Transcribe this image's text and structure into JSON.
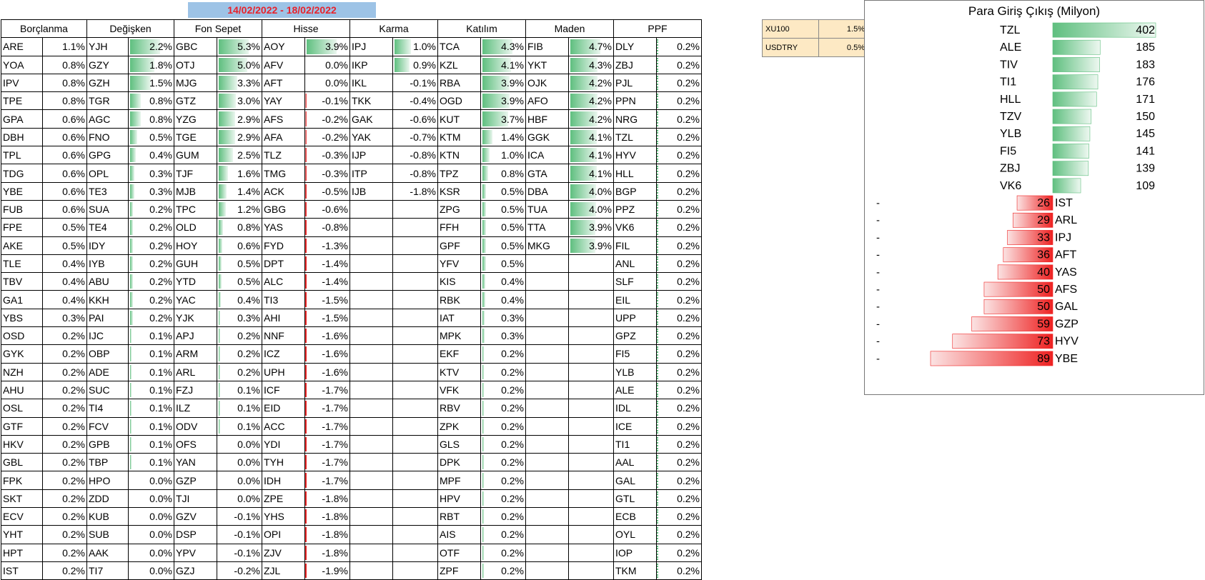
{
  "date_range": "14/02/2022 - 18/02/2022",
  "columns": [
    "Borçlanma",
    "Değişken",
    "Fon Sepet",
    "Hisse",
    "Karma",
    "Katılım",
    "Maden",
    "PPF"
  ],
  "rows": [
    [
      "ARE",
      "1.1%",
      "YJH",
      "2.2%",
      "GBC",
      "5.3%",
      "AOY",
      "3.9%",
      "IPJ",
      "1.0%",
      "TCA",
      "4.3%",
      "FIB",
      "4.7%",
      "DLY",
      "0.2%"
    ],
    [
      "YOA",
      "0.8%",
      "GZY",
      "1.8%",
      "OTJ",
      "5.0%",
      "AFV",
      "0.0%",
      "IKP",
      "0.9%",
      "KZL",
      "4.1%",
      "YKT",
      "4.3%",
      "ZBJ",
      "0.2%"
    ],
    [
      "IPV",
      "0.8%",
      "GZH",
      "1.5%",
      "MJG",
      "3.3%",
      "AFT",
      "0.0%",
      "IKL",
      "-0.1%",
      "RBA",
      "3.9%",
      "OJK",
      "4.2%",
      "PJL",
      "0.2%"
    ],
    [
      "TPE",
      "0.8%",
      "TGR",
      "0.8%",
      "GTZ",
      "3.0%",
      "YAY",
      "-0.1%",
      "TKK",
      "-0.4%",
      "OGD",
      "3.9%",
      "AFO",
      "4.2%",
      "PPN",
      "0.2%"
    ],
    [
      "GPA",
      "0.6%",
      "AGC",
      "0.8%",
      "YZG",
      "2.9%",
      "AFS",
      "-0.2%",
      "GAK",
      "-0.6%",
      "KUT",
      "3.7%",
      "HBF",
      "4.2%",
      "NRG",
      "0.2%"
    ],
    [
      "DBH",
      "0.6%",
      "FNO",
      "0.5%",
      "TGE",
      "2.9%",
      "AFA",
      "-0.2%",
      "YAK",
      "-0.7%",
      "KTM",
      "1.4%",
      "GGK",
      "4.1%",
      "TZL",
      "0.2%"
    ],
    [
      "TPL",
      "0.6%",
      "GPG",
      "0.4%",
      "GUM",
      "2.5%",
      "TLZ",
      "-0.3%",
      "IJP",
      "-0.8%",
      "KTN",
      "1.0%",
      "ICA",
      "4.1%",
      "HYV",
      "0.2%"
    ],
    [
      "TDG",
      "0.6%",
      "OPL",
      "0.3%",
      "TJF",
      "1.6%",
      "TMG",
      "-0.3%",
      "ITP",
      "-0.8%",
      "TPZ",
      "0.8%",
      "GTA",
      "4.1%",
      "HLL",
      "0.2%"
    ],
    [
      "YBE",
      "0.6%",
      "TE3",
      "0.3%",
      "MJB",
      "1.4%",
      "ACK",
      "-0.5%",
      "IJB",
      "-1.8%",
      "KSR",
      "0.5%",
      "DBA",
      "4.0%",
      "BGP",
      "0.2%"
    ],
    [
      "FUB",
      "0.6%",
      "SUA",
      "0.2%",
      "TPC",
      "1.2%",
      "GBG",
      "-0.6%",
      "",
      "",
      "ZPG",
      "0.5%",
      "TUA",
      "4.0%",
      "PPZ",
      "0.2%"
    ],
    [
      "FPE",
      "0.5%",
      "TE4",
      "0.2%",
      "OLD",
      "0.8%",
      "YAS",
      "-0.8%",
      "",
      "",
      "FFH",
      "0.5%",
      "TTA",
      "3.9%",
      "VK6",
      "0.2%"
    ],
    [
      "AKE",
      "0.5%",
      "IDY",
      "0.2%",
      "HOY",
      "0.6%",
      "FYD",
      "-1.3%",
      "",
      "",
      "GPF",
      "0.5%",
      "MKG",
      "3.9%",
      "FIL",
      "0.2%"
    ],
    [
      "TLE",
      "0.4%",
      "IYB",
      "0.2%",
      "GUH",
      "0.5%",
      "DPT",
      "-1.4%",
      "",
      "",
      "YFV",
      "0.5%",
      "",
      "",
      "ANL",
      "0.2%"
    ],
    [
      "TBV",
      "0.4%",
      "ABU",
      "0.2%",
      "YTD",
      "0.5%",
      "ALC",
      "-1.4%",
      "",
      "",
      "KIS",
      "0.4%",
      "",
      "",
      "SLF",
      "0.2%"
    ],
    [
      "GA1",
      "0.4%",
      "KKH",
      "0.2%",
      "YAC",
      "0.4%",
      "TI3",
      "-1.5%",
      "",
      "",
      "RBK",
      "0.4%",
      "",
      "",
      "EIL",
      "0.2%"
    ],
    [
      "YBS",
      "0.3%",
      "PAI",
      "0.2%",
      "YJK",
      "0.3%",
      "AHI",
      "-1.5%",
      "",
      "",
      "IAT",
      "0.3%",
      "",
      "",
      "UPP",
      "0.2%"
    ],
    [
      "OSD",
      "0.2%",
      "IJC",
      "0.1%",
      "APJ",
      "0.2%",
      "NNF",
      "-1.6%",
      "",
      "",
      "MPK",
      "0.3%",
      "",
      "",
      "GPZ",
      "0.2%"
    ],
    [
      "GYK",
      "0.2%",
      "OBP",
      "0.1%",
      "ARM",
      "0.2%",
      "ICZ",
      "-1.6%",
      "",
      "",
      "EKF",
      "0.2%",
      "",
      "",
      "FI5",
      "0.2%"
    ],
    [
      "NZH",
      "0.2%",
      "ADE",
      "0.1%",
      "ARL",
      "0.2%",
      "UPH",
      "-1.6%",
      "",
      "",
      "KTV",
      "0.2%",
      "",
      "",
      "YLB",
      "0.2%"
    ],
    [
      "AHU",
      "0.2%",
      "SUC",
      "0.1%",
      "FZJ",
      "0.1%",
      "ICF",
      "-1.7%",
      "",
      "",
      "VFK",
      "0.2%",
      "",
      "",
      "ALE",
      "0.2%"
    ],
    [
      "OSL",
      "0.2%",
      "TI4",
      "0.1%",
      "ILZ",
      "0.1%",
      "EID",
      "-1.7%",
      "",
      "",
      "RBV",
      "0.2%",
      "",
      "",
      "IDL",
      "0.2%"
    ],
    [
      "GTF",
      "0.2%",
      "FCV",
      "0.1%",
      "ODV",
      "0.1%",
      "ACC",
      "-1.7%",
      "",
      "",
      "ZPK",
      "0.2%",
      "",
      "",
      "ICE",
      "0.2%"
    ],
    [
      "HKV",
      "0.2%",
      "GPB",
      "0.1%",
      "OFS",
      "0.0%",
      "YDI",
      "-1.7%",
      "",
      "",
      "GLS",
      "0.2%",
      "",
      "",
      "TI1",
      "0.2%"
    ],
    [
      "GBL",
      "0.2%",
      "TBP",
      "0.1%",
      "YAN",
      "0.0%",
      "TYH",
      "-1.7%",
      "",
      "",
      "DPK",
      "0.2%",
      "",
      "",
      "AAL",
      "0.2%"
    ],
    [
      "FPK",
      "0.2%",
      "HPO",
      "0.0%",
      "GZP",
      "0.0%",
      "IDH",
      "-1.7%",
      "",
      "",
      "MPF",
      "0.2%",
      "",
      "",
      "GAL",
      "0.2%"
    ],
    [
      "SKT",
      "0.2%",
      "ZDD",
      "0.0%",
      "TJI",
      "0.0%",
      "ZPE",
      "-1.8%",
      "",
      "",
      "HPV",
      "0.2%",
      "",
      "",
      "GTL",
      "0.2%"
    ],
    [
      "ECV",
      "0.2%",
      "KUB",
      "0.0%",
      "GZV",
      "-0.1%",
      "YHS",
      "-1.8%",
      "",
      "",
      "RBT",
      "0.2%",
      "",
      "",
      "ECB",
      "0.2%"
    ],
    [
      "YHT",
      "0.2%",
      "SUB",
      "0.0%",
      "DSP",
      "-0.1%",
      "OPI",
      "-1.8%",
      "",
      "",
      "AIS",
      "0.2%",
      "",
      "",
      "OYL",
      "0.2%"
    ],
    [
      "HPT",
      "0.2%",
      "AAK",
      "0.0%",
      "YPV",
      "-0.1%",
      "ZJV",
      "-1.8%",
      "",
      "",
      "OTF",
      "0.2%",
      "",
      "",
      "IOP",
      "0.2%"
    ],
    [
      "IST",
      "0.2%",
      "TI7",
      "0.0%",
      "GZJ",
      "-0.2%",
      "ZJL",
      "-1.9%",
      "",
      "",
      "ZPF",
      "0.2%",
      "",
      "",
      "TKM",
      "0.2%"
    ]
  ],
  "bar_columns": [
    1,
    2,
    3,
    4,
    5,
    6
  ],
  "indices": [
    {
      "label": "XU100",
      "value": "1.5%"
    },
    {
      "label": "USDTRY",
      "value": "0.5%"
    }
  ],
  "colors": {
    "positive": "#5fbf7f",
    "negative": "#ee2222",
    "banner_bg": "#9dc3e6",
    "banner_text": "#e8222b",
    "index_bg": "#fde9c4"
  },
  "chart_data": {
    "type": "bar",
    "title": "Para Giriş Çıkış (Milyon)",
    "inflows": {
      "categories": [
        "TZL",
        "ALE",
        "TIV",
        "TI1",
        "HLL",
        "TZV",
        "YLB",
        "FI5",
        "ZBJ",
        "VK6"
      ],
      "values": [
        402,
        185,
        183,
        176,
        171,
        150,
        145,
        141,
        139,
        109
      ]
    },
    "outflows": {
      "categories": [
        "IST",
        "ARL",
        "IPJ",
        "AFT",
        "YAS",
        "AFS",
        "GAL",
        "GZP",
        "HYV",
        "YBE"
      ],
      "values": [
        -26,
        -29,
        -33,
        -36,
        -40,
        -50,
        -50,
        -59,
        -73,
        -89
      ],
      "labels": [
        "26",
        "29",
        "33",
        "36",
        "40",
        "50",
        "50",
        "59",
        "73",
        "89"
      ],
      "sign": "-"
    },
    "xlabel": "",
    "ylabel": ""
  }
}
